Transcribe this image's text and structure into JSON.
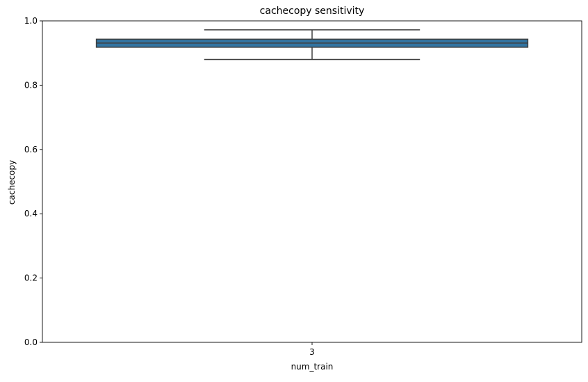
{
  "chart_data": {
    "type": "box",
    "title": "cachecopy sensitivity",
    "xlabel": "num_train",
    "ylabel": "cachecopy",
    "categories": [
      "3"
    ],
    "boxes": [
      {
        "category": "3",
        "whisker_low": 0.88,
        "q1": 0.918,
        "median": 0.931,
        "q3": 0.943,
        "whisker_high": 0.972
      }
    ],
    "ylim": [
      0.0,
      1.0
    ],
    "yticks": [
      0.0,
      0.2,
      0.4,
      0.6,
      0.8,
      1.0
    ],
    "ytick_labels": [
      "0.0",
      "0.2",
      "0.4",
      "0.6",
      "0.8",
      "1.0"
    ],
    "grid": false,
    "colors": {
      "box_fill": "#3274a1",
      "box_edge": "#3f3f3f",
      "axis": "#000000"
    }
  }
}
